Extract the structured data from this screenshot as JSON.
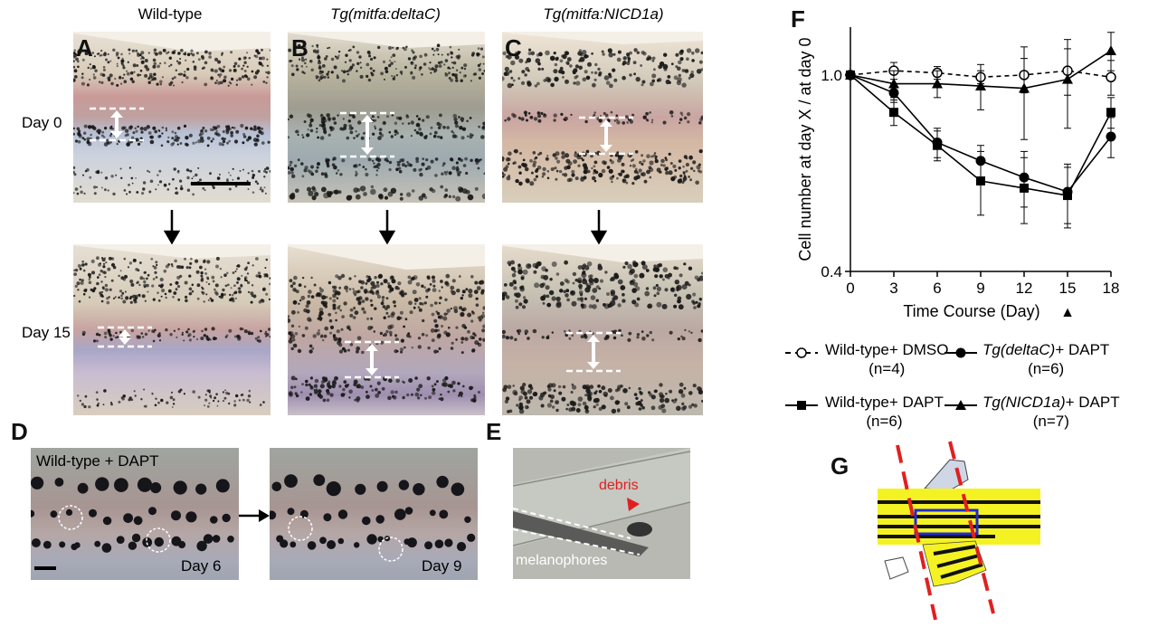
{
  "columns": {
    "wild_type": "Wild-type",
    "deltaC": "Tg(mitfa:deltaC)",
    "nicd": "Tg(mitfa:NICD1a)"
  },
  "rows": {
    "day0": "Day 0",
    "day15": "Day 15"
  },
  "panels": {
    "A": "A",
    "B": "B",
    "C": "C",
    "D": "D",
    "E": "E",
    "F": "F",
    "G": "G"
  },
  "panel_d": {
    "title": "Wild-type + DAPT",
    "day_left": "Day 6",
    "day_right": "Day 9"
  },
  "panel_e": {
    "debris": "debris",
    "melanophores": "melanophores"
  },
  "colors": {
    "stripe_blue": "#5a6fb0",
    "stripe_red": "#b06a72",
    "melano": "#1a1a1a",
    "fin_yellow": "#f5f224",
    "red_dash": "#e02020",
    "box_blue": "#1f2cd0"
  },
  "legend": [
    {
      "label": "Wild-type+ DMSO",
      "n": "(n=4)",
      "marker": "open-circle",
      "dash": true
    },
    {
      "label_italic": "Tg(deltaC)",
      "label": "+ DAPT",
      "n": "(n=6)",
      "marker": "filled-circle",
      "dash": false
    },
    {
      "label": "Wild-type+ DAPT",
      "n": "(n=6)",
      "marker": "filled-square",
      "dash": false
    },
    {
      "label_italic": "Tg(NICD1a)",
      "label": "+ DAPT",
      "n": "(n=7)",
      "marker": "filled-triangle",
      "dash": false
    }
  ],
  "chart_data": {
    "type": "line",
    "ylabel": "Cell number at day X /  at day 0",
    "xlabel": "Time Course (Day)",
    "y_scale": "log",
    "ylim": [
      0.4,
      1.25
    ],
    "xlim": [
      0,
      18
    ],
    "x_ticks": [
      "0",
      "3",
      "6",
      "9",
      "12",
      "15",
      "18"
    ],
    "y_ticks": [
      "1.0",
      "0.4"
    ],
    "x": [
      0,
      3,
      6,
      9,
      12,
      15,
      18
    ],
    "annotation": "▲",
    "annotation_x": 15,
    "series": [
      {
        "name": "Wild-type+ DMSO",
        "marker": "open-circle",
        "dash": true,
        "values": [
          1.0,
          1.02,
          1.01,
          0.99,
          1.0,
          1.02,
          0.99
        ],
        "err": [
          0,
          0.04,
          0.03,
          0.03,
          0.08,
          0.11,
          0.08
        ]
      },
      {
        "name": "Tg(deltaC)+ DAPT",
        "marker": "filled-circle",
        "dash": false,
        "values": [
          1.0,
          0.92,
          0.73,
          0.67,
          0.62,
          0.58,
          0.75
        ],
        "err": [
          0,
          0.04,
          0.05,
          0.05,
          0.08,
          0.08,
          0.07
        ]
      },
      {
        "name": "Wild-type+ DAPT",
        "marker": "filled-square",
        "dash": false,
        "values": [
          1.0,
          0.84,
          0.72,
          0.61,
          0.59,
          0.57,
          0.84
        ],
        "err": [
          0,
          0.05,
          0.05,
          0.09,
          0.09,
          0.08,
          0.06
        ]
      },
      {
        "name": "Tg(NICD1a)+ DAPT",
        "marker": "filled-triangle",
        "dash": false,
        "values": [
          1.0,
          0.96,
          0.96,
          0.95,
          0.94,
          0.98,
          1.12
        ],
        "err": [
          0,
          0.06,
          0.06,
          0.1,
          0.2,
          0.2,
          0.1
        ]
      }
    ]
  }
}
